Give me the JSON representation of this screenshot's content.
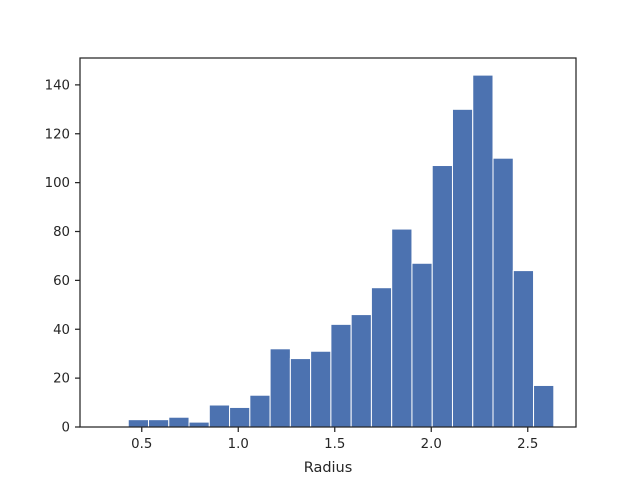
{
  "chart_data": {
    "type": "bar",
    "subtype": "histogram",
    "xlabel": "Radius",
    "ylabel": "",
    "xlim": [
      0.18,
      2.75
    ],
    "ylim": [
      0,
      151
    ],
    "xticks": [
      {
        "value": 0.5,
        "label": "0.5"
      },
      {
        "value": 1.0,
        "label": "1.0"
      },
      {
        "value": 1.5,
        "label": "1.5"
      },
      {
        "value": 2.0,
        "label": "2.0"
      },
      {
        "value": 2.5,
        "label": "2.5"
      }
    ],
    "yticks": [
      {
        "value": 0,
        "label": "0"
      },
      {
        "value": 20,
        "label": "20"
      },
      {
        "value": 40,
        "label": "40"
      },
      {
        "value": 60,
        "label": "60"
      },
      {
        "value": 80,
        "label": "80"
      },
      {
        "value": 100,
        "label": "100"
      },
      {
        "value": 120,
        "label": "120"
      },
      {
        "value": 140,
        "label": "140"
      }
    ],
    "bar_color": "#4c72b0",
    "edge_color": "#ffffff",
    "grid": false,
    "bins": [
      {
        "x0": 0.22,
        "x1": 0.325,
        "count": 0
      },
      {
        "x0": 0.325,
        "x1": 0.43,
        "count": 0
      },
      {
        "x0": 0.43,
        "x1": 0.535,
        "count": 3
      },
      {
        "x0": 0.535,
        "x1": 0.64,
        "count": 3
      },
      {
        "x0": 0.64,
        "x1": 0.745,
        "count": 4
      },
      {
        "x0": 0.745,
        "x1": 0.85,
        "count": 2
      },
      {
        "x0": 0.85,
        "x1": 0.955,
        "count": 9
      },
      {
        "x0": 0.955,
        "x1": 1.06,
        "count": 8
      },
      {
        "x0": 1.06,
        "x1": 1.165,
        "count": 13
      },
      {
        "x0": 1.165,
        "x1": 1.27,
        "count": 32
      },
      {
        "x0": 1.27,
        "x1": 1.375,
        "count": 28
      },
      {
        "x0": 1.375,
        "x1": 1.48,
        "count": 31
      },
      {
        "x0": 1.48,
        "x1": 1.585,
        "count": 42
      },
      {
        "x0": 1.585,
        "x1": 1.69,
        "count": 46
      },
      {
        "x0": 1.69,
        "x1": 1.795,
        "count": 57
      },
      {
        "x0": 1.795,
        "x1": 1.9,
        "count": 81
      },
      {
        "x0": 1.9,
        "x1": 2.005,
        "count": 67
      },
      {
        "x0": 2.005,
        "x1": 2.11,
        "count": 107
      },
      {
        "x0": 2.11,
        "x1": 2.215,
        "count": 130
      },
      {
        "x0": 2.215,
        "x1": 2.32,
        "count": 144
      },
      {
        "x0": 2.32,
        "x1": 2.425,
        "count": 110
      },
      {
        "x0": 2.425,
        "x1": 2.53,
        "count": 64
      },
      {
        "x0": 2.53,
        "x1": 2.635,
        "count": 17
      }
    ]
  }
}
